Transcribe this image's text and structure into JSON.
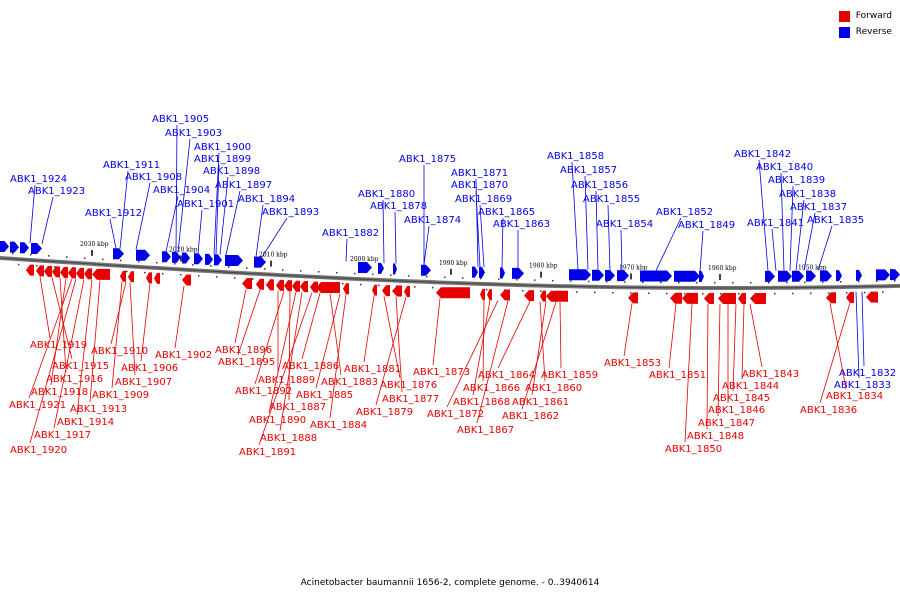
{
  "legend": {
    "forward": "Forward",
    "reverse": "Reverse",
    "forward_color": "#e60000",
    "reverse_color": "#0000e6"
  },
  "caption": "Acinetobacter baumannii 1656-2, complete genome. - 0..3940614",
  "ticks": [
    "2030 kbp",
    "2020 kbp",
    "2010 kbp",
    "2000 kbp",
    "1990 kbp",
    "1980 kbp",
    "1970 kbp",
    "1960 kbp",
    "1950 kbp"
  ],
  "reverse_labels": [
    "ABK1_1924",
    "ABK1_1923",
    "ABK1_1912",
    "ABK1_1911",
    "ABK1_1908",
    "ABK1_1905",
    "ABK1_1904",
    "ABK1_1903",
    "ABK1_1901",
    "ABK1_1900",
    "ABK1_1899",
    "ABK1_1898",
    "ABK1_1897",
    "ABK1_1894",
    "ABK1_1893",
    "ABK1_1882",
    "ABK1_1880",
    "ABK1_1878",
    "ABK1_1875",
    "ABK1_1874",
    "ABK1_1871",
    "ABK1_1870",
    "ABK1_1869",
    "ABK1_1865",
    "ABK1_1863",
    "ABK1_1858",
    "ABK1_1857",
    "ABK1_1856",
    "ABK1_1855",
    "ABK1_1854",
    "ABK1_1852",
    "ABK1_1849",
    "ABK1_1842",
    "ABK1_1841",
    "ABK1_1840",
    "ABK1_1839",
    "ABK1_1838",
    "ABK1_1837",
    "ABK1_1835",
    "ABK1_1832",
    "ABK1_1833"
  ],
  "forward_labels": [
    "ABK1_1919",
    "ABK1_1915",
    "ABK1_1916",
    "ABK1_1918",
    "ABK1_1921",
    "ABK1_1920",
    "ABK1_1917",
    "ABK1_1914",
    "ABK1_1913",
    "ABK1_1909",
    "ABK1_1907",
    "ABK1_1906",
    "ABK1_1910",
    "ABK1_1902",
    "ABK1_1896",
    "ABK1_1895",
    "ABK1_1889",
    "ABK1_1892",
    "ABK1_1887",
    "ABK1_1890",
    "ABK1_1888",
    "ABK1_1891",
    "ABK1_1886",
    "ABK1_1883",
    "ABK1_1885",
    "ABK1_1884",
    "ABK1_1881",
    "ABK1_1876",
    "ABK1_1877",
    "ABK1_1879",
    "ABK1_1873",
    "ABK1_1866",
    "ABK1_1868",
    "ABK1_1872",
    "ABK1_1867",
    "ABK1_1864",
    "ABK1_1860",
    "ABK1_1861",
    "ABK1_1862",
    "ABK1_1859",
    "ABK1_1853",
    "ABK1_1851",
    "ABK1_1850",
    "ABK1_1848",
    "ABK1_1847",
    "ABK1_1846",
    "ABK1_1845",
    "ABK1_1844",
    "ABK1_1843",
    "ABK1_1834",
    "ABK1_1836"
  ]
}
